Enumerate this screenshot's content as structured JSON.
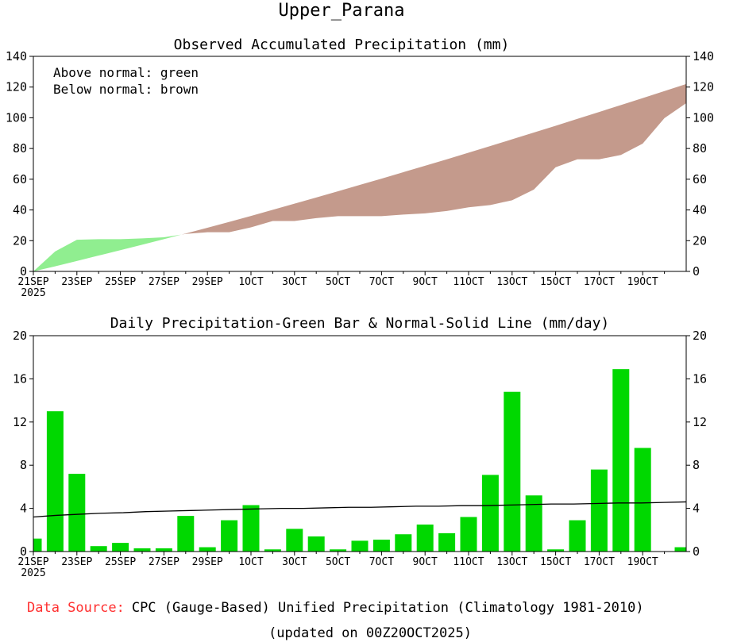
{
  "chart_data": [
    {
      "type": "area",
      "title": "Upper_Parana",
      "subtitle": "Observed Accumulated Precipitation (mm)",
      "legend_lines": [
        "Above normal: green",
        "Below normal: brown"
      ],
      "ylim": [
        0,
        140
      ],
      "yticks": [
        "0",
        "20",
        "40",
        "60",
        "80",
        "100",
        "120",
        "140"
      ],
      "x_labels": [
        "21SEP",
        "23SEP",
        "25SEP",
        "27SEP",
        "29SEP",
        "1OCT",
        "3OCT",
        "5OCT",
        "7OCT",
        "9OCT",
        "11OCT",
        "13OCT",
        "15OCT",
        "17OCT",
        "19OCT"
      ],
      "x_year": "2025",
      "colors": {
        "above": "#90ee90",
        "below": "#c49a8c"
      },
      "series": [
        {
          "name": "Observed",
          "values": [
            0,
            13,
            20.6,
            21,
            21,
            21.5,
            22.2,
            24.4,
            25.5,
            25.5,
            28.7,
            32.8,
            32.8,
            34.7,
            36,
            36,
            36,
            37,
            37.8,
            39.3,
            41.7,
            43.2,
            46.3,
            53.3,
            67.8,
            73,
            73,
            75.8,
            83.2,
            99.8,
            109.5,
            109.5
          ]
        },
        {
          "name": "Normal",
          "values": [
            0,
            3.3,
            6.8,
            10.3,
            13.8,
            17.4,
            21,
            24.7,
            28.4,
            32.2,
            36.1,
            40.1,
            44.1,
            48.1,
            52.2,
            56.3,
            60.4,
            64.6,
            68.8,
            73,
            77.3,
            81.6,
            86,
            90.4,
            94.8,
            99.3,
            103.8,
            108.3,
            112.8,
            117.4,
            122,
            122
          ]
        }
      ]
    },
    {
      "type": "bar",
      "subtitle": "Daily Precipitation-Green Bar & Normal-Solid Line (mm/day)",
      "ylim": [
        0,
        20
      ],
      "yticks": [
        "0",
        "4",
        "8",
        "12",
        "16",
        "20"
      ],
      "x_labels": [
        "21SEP",
        "23SEP",
        "25SEP",
        "27SEP",
        "29SEP",
        "1OCT",
        "3OCT",
        "5OCT",
        "7OCT",
        "9OCT",
        "11OCT",
        "13OCT",
        "15OCT",
        "17OCT",
        "19OCT"
      ],
      "x_year": "2025",
      "colors": {
        "bar": "#00d800",
        "line": "#000000"
      },
      "series": [
        {
          "name": "Daily",
          "values": [
            1.2,
            13.0,
            7.2,
            0.5,
            0.8,
            0.3,
            0.3,
            3.3,
            0.4,
            2.9,
            4.3,
            0.2,
            2.1,
            1.4,
            0.2,
            1.0,
            1.1,
            1.6,
            2.5,
            1.7,
            3.2,
            7.1,
            14.8,
            5.2,
            0.2,
            2.9,
            7.6,
            16.9,
            9.6,
            0.4
          ]
        },
        {
          "name": "Normal",
          "values": [
            3.2,
            3.35,
            3.45,
            3.55,
            3.6,
            3.7,
            3.75,
            3.8,
            3.85,
            3.9,
            3.95,
            4.0,
            4.0,
            4.05,
            4.1,
            4.1,
            4.15,
            4.2,
            4.2,
            4.25,
            4.25,
            4.3,
            4.35,
            4.4,
            4.4,
            4.45,
            4.5,
            4.5,
            4.55,
            4.6
          ]
        }
      ]
    }
  ],
  "footer": {
    "source_label": "Data Source:",
    "source_text": "CPC (Gauge-Based) Unified Precipitation (Climatology 1981-2010)",
    "updated": "(updated on 00Z20OCT2025)"
  }
}
